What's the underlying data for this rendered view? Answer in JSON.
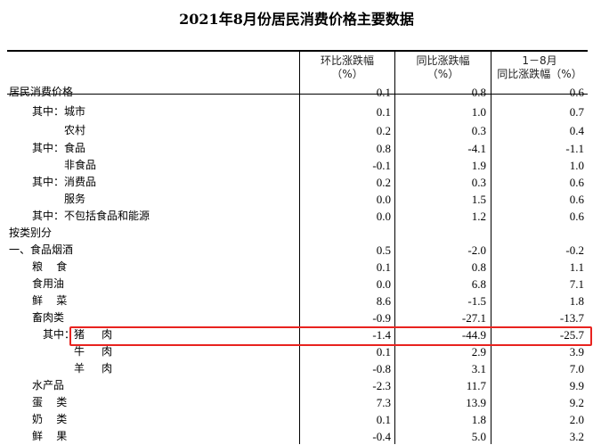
{
  "title": "2021年8月份居民消费价格主要数据",
  "headers": [
    [
      "环比涨跌幅",
      "（%）"
    ],
    [
      "同比涨跌幅",
      "（%）"
    ],
    [
      "1－8月",
      "同比涨跌幅（%）"
    ]
  ],
  "highlight_color": "#e8231f",
  "rows": [
    {
      "prefix": "",
      "label": "居民消费价格",
      "level": 0,
      "values": [
        "0.1",
        "0.8",
        "0.6"
      ]
    },
    {
      "prefix": "其中：",
      "label": "城市",
      "level": 1,
      "values": [
        "0.1",
        "1.0",
        "0.7"
      ]
    },
    {
      "prefix": "",
      "label": "农村",
      "level": 2,
      "values": [
        "0.2",
        "0.3",
        "0.4"
      ]
    },
    {
      "prefix": "其中：",
      "label": "食品",
      "level": 1,
      "values": [
        "0.8",
        "-4.1",
        "-1.1"
      ]
    },
    {
      "prefix": "",
      "label": "非食品",
      "level": 2,
      "values": [
        "-0.1",
        "1.9",
        "1.0"
      ]
    },
    {
      "prefix": "其中：",
      "label": "消费品",
      "level": 1,
      "values": [
        "0.2",
        "0.3",
        "0.6"
      ]
    },
    {
      "prefix": "",
      "label": "服务",
      "level": 2,
      "values": [
        "0.0",
        "1.5",
        "0.6"
      ]
    },
    {
      "prefix": "其中：",
      "label": "不包括食品和能源",
      "level": 1,
      "values": [
        "0.0",
        "1.2",
        "0.6"
      ]
    },
    {
      "prefix": "",
      "label": "按类别分",
      "level": 0,
      "values": [
        "",
        "",
        ""
      ]
    },
    {
      "prefix": "",
      "label": "一、食品烟酒",
      "level": 0,
      "values": [
        "0.5",
        "-2.0",
        "-0.2"
      ]
    },
    {
      "prefix": "",
      "label": "粮    食",
      "level": 3,
      "values": [
        "0.1",
        "0.8",
        "1.1"
      ]
    },
    {
      "prefix": "",
      "label": "食用油",
      "level": 3,
      "values": [
        "0.0",
        "6.8",
        "7.1"
      ]
    },
    {
      "prefix": "",
      "label": "鲜    菜",
      "level": 3,
      "values": [
        "8.6",
        "-1.5",
        "1.8"
      ]
    },
    {
      "prefix": "",
      "label": "畜肉类",
      "level": 3,
      "values": [
        "-0.9",
        "-27.1",
        "-13.7"
      ]
    },
    {
      "prefix": "其中：",
      "label": "猪     肉",
      "level": 4,
      "highlighted": true,
      "values": [
        "-1.4",
        "-44.9",
        "-25.7"
      ]
    },
    {
      "prefix": "",
      "label": "牛     肉",
      "level": 5,
      "values": [
        "0.1",
        "2.9",
        "3.9"
      ]
    },
    {
      "prefix": "",
      "label": "羊     肉",
      "level": 5,
      "values": [
        "-0.8",
        "3.1",
        "7.0"
      ]
    },
    {
      "prefix": "",
      "label": "水产品",
      "level": 3,
      "values": [
        "-2.3",
        "11.7",
        "9.9"
      ]
    },
    {
      "prefix": "",
      "label": "蛋    类",
      "level": 3,
      "values": [
        "7.3",
        "13.9",
        "9.2"
      ]
    },
    {
      "prefix": "",
      "label": "奶    类",
      "level": 3,
      "values": [
        "0.1",
        "1.8",
        "2.0"
      ]
    },
    {
      "prefix": "",
      "label": "鲜    果",
      "level": 3,
      "values": [
        "-0.4",
        "5.0",
        "3.2"
      ]
    }
  ]
}
